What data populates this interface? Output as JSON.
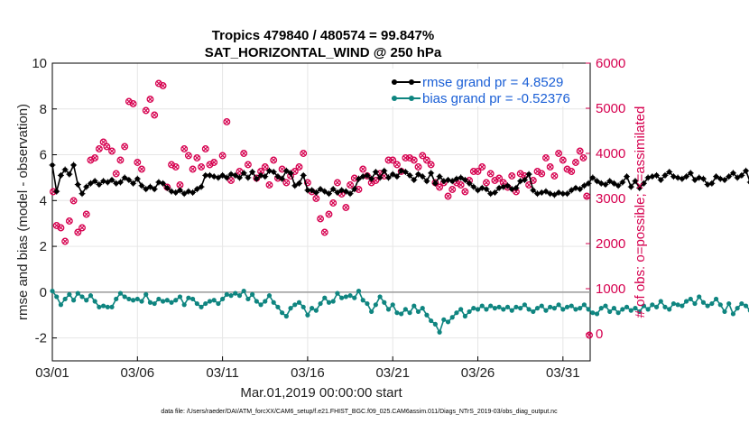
{
  "chart_data": {
    "type": "line",
    "title": "Tropics 479840 / 480574 = 99.847%",
    "subtitle": "SAT_HORIZONTAL_WIND @ 250 hPa",
    "xlabel": "Mar.01,2019 00:00:00 start",
    "ylabel_left": "rmse and bias (model - observation)",
    "ylabel_right": "# of obs: o=possible; ×=assimilated",
    "footer": "data file: /Users/raeder/DAI/ATM_forcXX/CAM6_setup/f.e21.FHIST_BGC.f09_025.CAM6assim.011/Diags_NTrS_2019-03/obs_diag_output.nc",
    "x_range_days": [
      0,
      31.6
    ],
    "x_ticks": [
      0,
      5,
      10,
      15,
      20,
      25,
      30
    ],
    "x_tick_labels": [
      "03/01",
      "03/06",
      "03/11",
      "03/16",
      "03/21",
      "03/26",
      "03/31"
    ],
    "ylim_left": [
      -3,
      10
    ],
    "y_ticks_left": [
      -2,
      0,
      2,
      4,
      6,
      8,
      10
    ],
    "y_tick_labels_left": [
      "-2",
      "0",
      "2",
      "4",
      "6",
      "8",
      "10"
    ],
    "ylim_right": [
      -600,
      6000
    ],
    "y_ticks_right": [
      0,
      1000,
      2000,
      3000,
      4000,
      5000,
      6000
    ],
    "y_tick_labels_right": [
      "0",
      "1000",
      "2000",
      "3000",
      "4000",
      "5000",
      "6000"
    ],
    "grid": true,
    "legend_position": "top-right",
    "series": [
      {
        "name": "rmse grand pr = 4.8529",
        "color": "#000000",
        "marker": "asterisk",
        "x_start": 0.0,
        "x_step": 0.25,
        "values": [
          5.55,
          4.4,
          5.1,
          5.35,
          5.15,
          5.55,
          4.7,
          4.3,
          4.6,
          4.75,
          4.85,
          4.7,
          4.85,
          4.8,
          4.9,
          4.75,
          4.8,
          5.0,
          4.9,
          4.75,
          4.95,
          4.65,
          4.5,
          4.6,
          4.5,
          4.8,
          4.75,
          4.55,
          4.4,
          4.35,
          4.45,
          4.3,
          4.4,
          4.35,
          4.5,
          4.6,
          5.1,
          5.1,
          5.05,
          5.0,
          5.1,
          5.0,
          5.15,
          5.1,
          5.0,
          5.2,
          5.0,
          5.25,
          4.95,
          5.1,
          5.05,
          5.3,
          5.25,
          5.05,
          4.95,
          5.3,
          5.2,
          4.65,
          4.75,
          5.1,
          4.45,
          4.45,
          4.35,
          4.5,
          4.4,
          4.3,
          4.5,
          4.35,
          4.45,
          4.4,
          4.3,
          4.5,
          4.95,
          5.05,
          5.1,
          4.95,
          5.25,
          5.0,
          5.3,
          5.0,
          5.15,
          5.05,
          5.3,
          5.25,
          5.1,
          4.9,
          5.15,
          5.05,
          4.85,
          5.2,
          4.75,
          5.05,
          4.85,
          4.9,
          4.85,
          4.95,
          5.0,
          4.9,
          4.75,
          4.6,
          4.45,
          4.55,
          4.5,
          4.3,
          4.35,
          4.55,
          4.6,
          4.65,
          4.5,
          4.55,
          4.85,
          4.9,
          5.15,
          4.45,
          4.3,
          4.35,
          4.4,
          4.3,
          4.25,
          4.35,
          4.3,
          4.3,
          4.45,
          4.55,
          4.5,
          4.65,
          4.75,
          5.0,
          4.85,
          4.75,
          4.7,
          4.85,
          4.75,
          4.65,
          4.8,
          5.05,
          4.6,
          4.85,
          4.55,
          4.75,
          5.0,
          5.05,
          5.1,
          4.9,
          5.1,
          5.25,
          5.05,
          5.0,
          4.95,
          5.05,
          5.2,
          4.9,
          5.0,
          4.95,
          4.7,
          4.75,
          5.05,
          4.95,
          4.9,
          5.05,
          5.2,
          5.0,
          5.1,
          5.3,
          4.8,
          5.1,
          5.2,
          5.6,
          5.95,
          5.1,
          4.9,
          4.75,
          4.7,
          4.6,
          4.65,
          5.1,
          4.85,
          4.9,
          4.8
        ]
      },
      {
        "name": "bias grand pr = -0.52376",
        "color": "#0f8580",
        "marker": "dot",
        "x_start": 0.0,
        "x_step": 0.25,
        "values": [
          0.05,
          -0.2,
          -0.55,
          -0.3,
          -0.1,
          -0.35,
          -0.05,
          -0.2,
          -0.35,
          -0.15,
          -0.4,
          -0.65,
          -0.6,
          -0.65,
          -0.65,
          -0.3,
          -0.05,
          -0.2,
          -0.3,
          -0.35,
          -0.3,
          -0.4,
          -0.1,
          -0.45,
          -0.5,
          -0.3,
          -0.4,
          -0.35,
          -0.45,
          -0.35,
          -0.2,
          -0.55,
          -0.25,
          -0.3,
          -0.5,
          -0.65,
          -0.5,
          -0.4,
          -0.35,
          -0.5,
          -0.3,
          -0.1,
          -0.15,
          -0.05,
          -0.15,
          0.05,
          -0.3,
          -0.1,
          -0.4,
          -0.55,
          -0.4,
          -0.15,
          -0.45,
          -0.65,
          -0.9,
          -1.05,
          -0.7,
          -0.55,
          -0.45,
          -0.65,
          -1.0,
          -0.7,
          -0.8,
          -0.5,
          -0.25,
          -0.45,
          -0.4,
          -0.05,
          -0.25,
          -0.2,
          -0.15,
          -0.25,
          0.05,
          -0.35,
          -0.5,
          -0.85,
          -0.55,
          -0.2,
          -0.45,
          -0.75,
          -0.55,
          -0.9,
          -0.95,
          -0.75,
          -0.9,
          -0.6,
          -0.85,
          -0.7,
          -1.0,
          -1.25,
          -1.4,
          -1.75,
          -1.2,
          -1.3,
          -1.1,
          -0.9,
          -0.75,
          -1.05,
          -0.85,
          -0.7,
          -0.75,
          -0.6,
          -0.75,
          -0.6,
          -0.7,
          -0.65,
          -0.75,
          -0.65,
          -0.8,
          -0.65,
          -0.7,
          -0.55,
          -0.75,
          -0.85,
          -0.7,
          -0.6,
          -0.8,
          -0.65,
          -0.7,
          -0.55,
          -0.75,
          -0.65,
          -0.6,
          -0.75,
          -0.7,
          -0.55,
          -0.75,
          -0.9,
          -0.95,
          -0.7,
          -0.6,
          -0.85,
          -0.7,
          -0.9,
          -0.75,
          -0.65,
          -0.8,
          -0.7,
          -0.85,
          -0.6,
          -0.75,
          -0.55,
          -0.65,
          -0.4,
          -0.65,
          -0.75,
          -0.5,
          -0.55,
          -0.6,
          -0.4,
          -0.3,
          -0.5,
          -0.2,
          -0.45,
          -0.6,
          -0.5,
          -0.3,
          -0.55,
          -0.85,
          -0.5,
          -0.95,
          -0.7,
          -0.5,
          -0.6,
          -0.8,
          -0.45,
          -0.55,
          -0.65,
          -0.75,
          -0.6,
          -0.85,
          -0.55,
          -0.7,
          -0.45,
          -0.75,
          -0.95,
          -0.7,
          -0.6,
          -0.55,
          -0.6
        ]
      },
      {
        "name": "# of obs (possible / assimilated)",
        "axis": "right",
        "color": "#d6004f",
        "marker": "circle-x",
        "points": [
          [
            0.05,
            3150
          ],
          [
            0.25,
            2400
          ],
          [
            0.5,
            2350
          ],
          [
            0.75,
            2050
          ],
          [
            1.0,
            2500
          ],
          [
            1.25,
            2950
          ],
          [
            1.5,
            2250
          ],
          [
            1.75,
            2350
          ],
          [
            2.0,
            2650
          ],
          [
            2.25,
            3850
          ],
          [
            2.5,
            3900
          ],
          [
            2.75,
            4100
          ],
          [
            3.0,
            4250
          ],
          [
            3.2,
            4150
          ],
          [
            3.5,
            4050
          ],
          [
            3.75,
            3550
          ],
          [
            4.0,
            3850
          ],
          [
            4.25,
            4150
          ],
          [
            4.5,
            5150
          ],
          [
            4.75,
            5100
          ],
          [
            5.0,
            3800
          ],
          [
            5.25,
            3650
          ],
          [
            5.5,
            4950
          ],
          [
            5.75,
            5200
          ],
          [
            6.0,
            4850
          ],
          [
            6.25,
            5550
          ],
          [
            6.5,
            5500
          ],
          [
            6.75,
            3250
          ],
          [
            7.0,
            3750
          ],
          [
            7.25,
            3700
          ],
          [
            7.5,
            3300
          ],
          [
            7.75,
            4100
          ],
          [
            8.0,
            3950
          ],
          [
            8.25,
            3650
          ],
          [
            8.5,
            3900
          ],
          [
            8.75,
            3700
          ],
          [
            9.0,
            4100
          ],
          [
            9.25,
            3750
          ],
          [
            9.5,
            3800
          ],
          [
            10.0,
            3950
          ],
          [
            10.25,
            4700
          ],
          [
            10.5,
            3400
          ],
          [
            11.0,
            3600
          ],
          [
            11.25,
            4000
          ],
          [
            11.5,
            3750
          ],
          [
            12.0,
            3450
          ],
          [
            12.25,
            3600
          ],
          [
            12.5,
            3700
          ],
          [
            12.75,
            3300
          ],
          [
            13.0,
            3850
          ],
          [
            13.25,
            3450
          ],
          [
            13.5,
            3650
          ],
          [
            13.75,
            3350
          ],
          [
            14.0,
            3500
          ],
          [
            14.25,
            3600
          ],
          [
            14.5,
            3700
          ],
          [
            14.75,
            4000
          ],
          [
            15.0,
            3350
          ],
          [
            15.25,
            3150
          ],
          [
            15.5,
            3000
          ],
          [
            15.75,
            2550
          ],
          [
            16.0,
            2250
          ],
          [
            16.25,
            2650
          ],
          [
            16.5,
            2900
          ],
          [
            16.75,
            3350
          ],
          [
            17.0,
            3100
          ],
          [
            17.25,
            2800
          ],
          [
            17.5,
            3300
          ],
          [
            17.75,
            3450
          ],
          [
            18.0,
            3200
          ],
          [
            18.25,
            3650
          ],
          [
            18.5,
            3500
          ],
          [
            18.75,
            3350
          ],
          [
            19.0,
            3400
          ],
          [
            19.25,
            3550
          ],
          [
            19.5,
            3500
          ],
          [
            19.75,
            3850
          ],
          [
            20.0,
            3850
          ],
          [
            20.25,
            3750
          ],
          [
            20.5,
            3600
          ],
          [
            20.75,
            3900
          ],
          [
            21.0,
            3900
          ],
          [
            21.25,
            3850
          ],
          [
            21.5,
            3700
          ],
          [
            21.75,
            3950
          ],
          [
            22.0,
            3850
          ],
          [
            22.25,
            3750
          ],
          [
            22.5,
            3350
          ],
          [
            22.75,
            3250
          ],
          [
            23.0,
            3350
          ],
          [
            23.25,
            3050
          ],
          [
            23.5,
            3200
          ],
          [
            23.75,
            3350
          ],
          [
            24.0,
            3300
          ],
          [
            24.25,
            3150
          ],
          [
            24.5,
            3400
          ],
          [
            24.75,
            3600
          ],
          [
            25.0,
            3600
          ],
          [
            25.25,
            3700
          ],
          [
            25.5,
            3350
          ],
          [
            25.75,
            3550
          ],
          [
            26.0,
            3400
          ],
          [
            26.25,
            3450
          ],
          [
            26.5,
            3350
          ],
          [
            26.75,
            3250
          ],
          [
            27.0,
            3500
          ],
          [
            27.25,
            3150
          ],
          [
            27.5,
            3550
          ],
          [
            27.75,
            3500
          ],
          [
            28.0,
            3300
          ],
          [
            28.25,
            3400
          ],
          [
            28.5,
            3600
          ],
          [
            28.75,
            3550
          ],
          [
            29.0,
            3900
          ],
          [
            29.25,
            3700
          ],
          [
            29.5,
            3500
          ],
          [
            29.75,
            4000
          ],
          [
            30.0,
            3850
          ],
          [
            30.25,
            3650
          ],
          [
            30.5,
            3600
          ],
          [
            30.75,
            3800
          ],
          [
            31.0,
            4050
          ],
          [
            31.2,
            3900
          ],
          [
            31.4,
            3050
          ],
          [
            31.55,
            -30
          ]
        ]
      }
    ]
  }
}
